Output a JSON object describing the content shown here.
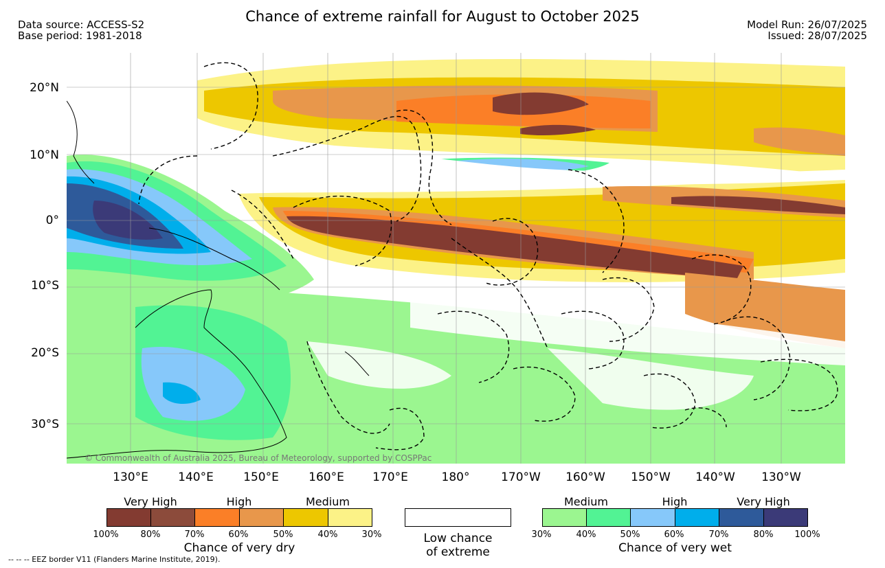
{
  "title": "Chance of extreme rainfall for August to October 2025",
  "meta": {
    "data_source": "Data source: ACCESS-S2",
    "base_period": "Base period: 1981-2018",
    "model_run": "Model Run: 26/07/2025",
    "issued": "Issued: 28/07/2025"
  },
  "map": {
    "lat_labels": [
      "20°N",
      "10°N",
      "0°",
      "10°S",
      "20°S",
      "30°S"
    ],
    "lon_labels": [
      "130°E",
      "140°E",
      "150°E",
      "160°E",
      "170°E",
      "180°",
      "170°W",
      "160°W",
      "150°W",
      "140°W",
      "130°W"
    ],
    "copyright": "© Commonwealth of Australia 2025, Bureau of Meteorology, supported by COSPPac",
    "colors": {
      "dry_very_high_dark": "#833B31",
      "dry_very_high": "#8C4B3B",
      "dry_high_dark": "#FB7F27",
      "dry_high": "#E8974B",
      "dry_medium_dark": "#EDC700",
      "dry_medium": "#FCF287",
      "wet_medium": "#9BF690",
      "wet_medium_dark": "#52F394",
      "wet_high": "#86C8FA",
      "wet_high_dark": "#00AEEB",
      "wet_very_high": "#2E5A9A",
      "wet_very_high_dark": "#3B3A78"
    }
  },
  "legend": {
    "dry": {
      "headers": [
        "Very High",
        "High",
        "Medium"
      ],
      "percents": [
        "100%",
        "80%",
        "70%",
        "60%",
        "50%",
        "40%",
        "30%"
      ],
      "title": "Chance of very dry",
      "colors": [
        "#833B31",
        "#8C4B3B",
        "#FB7F27",
        "#E8974B",
        "#EDC700",
        "#FCF287"
      ]
    },
    "low": {
      "line1": "Low chance",
      "line2": "of extreme"
    },
    "wet": {
      "headers": [
        "Medium",
        "High",
        "Very High"
      ],
      "percents": [
        "30%",
        "40%",
        "50%",
        "60%",
        "70%",
        "80%",
        "100%"
      ],
      "title": "Chance of very wet",
      "colors": [
        "#9BF690",
        "#52F394",
        "#86C8FA",
        "#00AEEB",
        "#2E5A9A",
        "#3B3A78"
      ]
    }
  },
  "footnote": "-- -- -- EEZ border V11 (Flanders Marine Institute, 2019)."
}
